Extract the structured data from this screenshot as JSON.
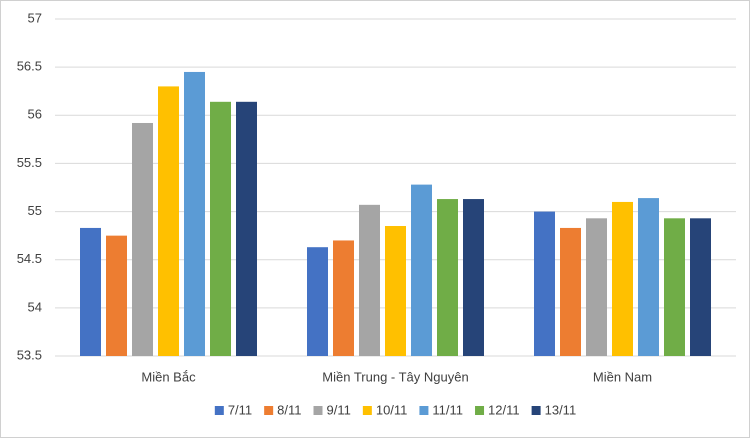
{
  "chart_data": {
    "type": "bar",
    "categories": [
      "Miền Bắc",
      "Miền Trung - Tây Nguyên",
      "Miền Nam"
    ],
    "series": [
      {
        "name": "7/11",
        "color": "#4472c4",
        "values": [
          54.83,
          54.63,
          55.0
        ]
      },
      {
        "name": "8/11",
        "color": "#ed7d31",
        "values": [
          54.75,
          54.7,
          54.83
        ]
      },
      {
        "name": "9/11",
        "color": "#a5a5a5",
        "values": [
          55.92,
          55.07,
          54.93
        ]
      },
      {
        "name": "10/11",
        "color": "#ffc000",
        "values": [
          56.3,
          54.85,
          55.1
        ]
      },
      {
        "name": "11/11",
        "color": "#5b9bd5",
        "values": [
          56.45,
          55.28,
          55.14
        ]
      },
      {
        "name": "12/11",
        "color": "#70ad47",
        "values": [
          56.14,
          55.13,
          54.93
        ]
      },
      {
        "name": "13/11",
        "color": "#264478",
        "values": [
          56.14,
          55.13,
          54.93
        ]
      }
    ],
    "ylim": [
      53.5,
      57
    ],
    "yticks": [
      53.5,
      54,
      54.5,
      55,
      55.5,
      56,
      56.5,
      57
    ],
    "grid": true,
    "legend": "bottom"
  }
}
